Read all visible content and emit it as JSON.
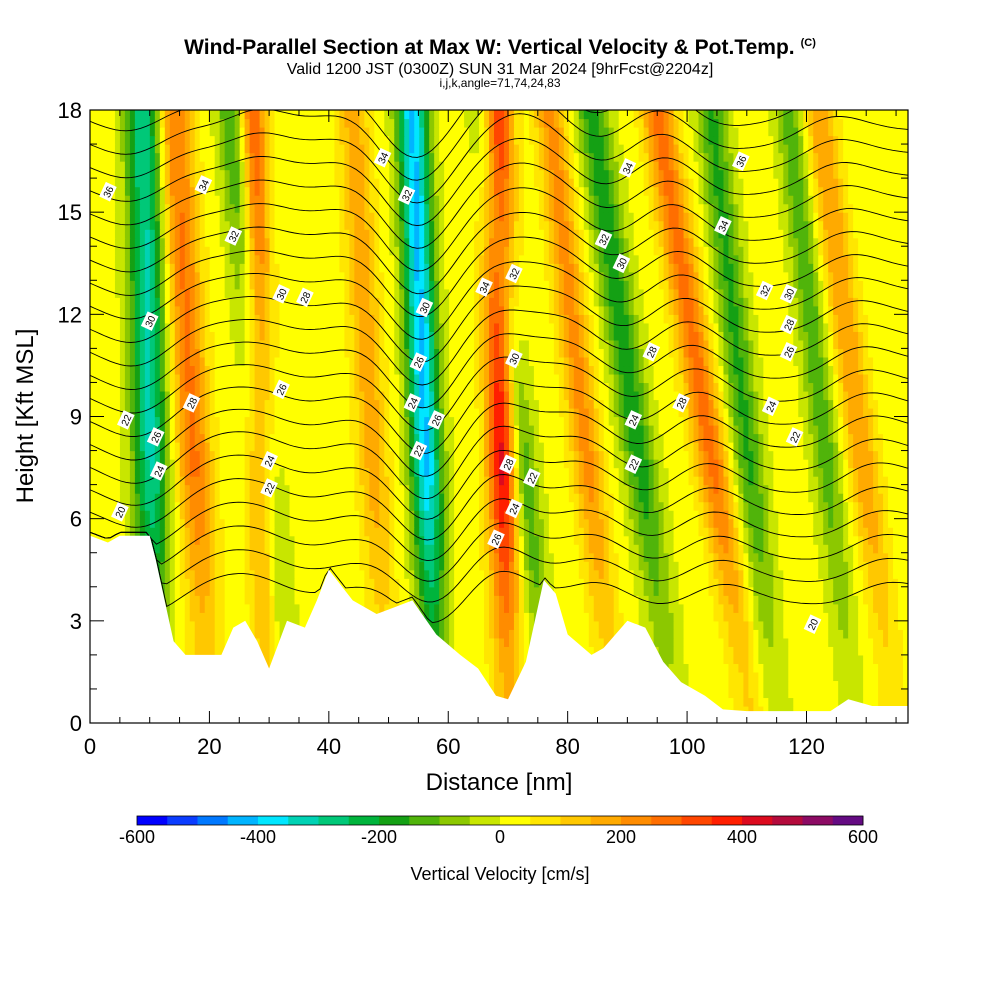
{
  "title": {
    "main": "Wind-Parallel Section at Max W: Vertical Velocity & Pot.Temp.",
    "copyright": "(C)",
    "line2": "Valid 1200 JST (0300Z) SUN 31 Mar 2024 [9hrFcst@2204z]",
    "line3": "i,j,k,angle=71,74,24,83"
  },
  "chart_data": {
    "type": "heatmap",
    "xlabel": "Distance [nm]",
    "ylabel": "Height [Kft MSL]",
    "xlim": [
      0,
      137
    ],
    "ylim": [
      0,
      18
    ],
    "x_ticks": [
      "0",
      "20",
      "40",
      "60",
      "80",
      "100",
      "120"
    ],
    "y_ticks": [
      "0",
      "3",
      "6",
      "9",
      "12",
      "15",
      "18"
    ],
    "x_tick_values": [
      0,
      20,
      40,
      60,
      80,
      100,
      120
    ],
    "y_tick_values": [
      0,
      3,
      6,
      9,
      12,
      15,
      18
    ],
    "grid": false,
    "colorbar": {
      "title": "Vertical Velocity [cm/s]",
      "range": [
        -600,
        600
      ],
      "tick_labels": [
        "-600",
        "-400",
        "-200",
        "0",
        "200",
        "400",
        "600"
      ],
      "tick_values": [
        -600,
        -400,
        -200,
        0,
        200,
        400,
        600
      ],
      "colors": [
        "#0000ff",
        "#0a3cff",
        "#0078ff",
        "#00b4ff",
        "#00e6ff",
        "#00d2b4",
        "#00c878",
        "#00b43c",
        "#14a014",
        "#50b40a",
        "#8cc800",
        "#c8e600",
        "#ffff00",
        "#ffe600",
        "#ffc800",
        "#ffaa00",
        "#ff8c00",
        "#ff6e00",
        "#ff4600",
        "#ff1e00",
        "#dc0a1e",
        "#b40a3c",
        "#8c0a64",
        "#640a82"
      ]
    },
    "terrain_profile": {
      "x": [
        0,
        3,
        5,
        10,
        11,
        13,
        14,
        16,
        18,
        22,
        24,
        26,
        28,
        30,
        33,
        36,
        38,
        40,
        44,
        48,
        51,
        54,
        58,
        62,
        65,
        68,
        70,
        73,
        76,
        78,
        80,
        84,
        86,
        90,
        93,
        96,
        99,
        103,
        106,
        110,
        113,
        118,
        124,
        127,
        131,
        137
      ],
      "h": [
        5.5,
        5.3,
        5.5,
        5.5,
        4.8,
        3.2,
        2.4,
        2.0,
        2.0,
        2.0,
        2.8,
        3.0,
        2.4,
        1.6,
        3.0,
        2.8,
        3.6,
        4.5,
        3.6,
        3.2,
        3.4,
        3.6,
        2.6,
        2.0,
        1.6,
        0.8,
        0.7,
        1.8,
        4.2,
        3.8,
        2.6,
        2.0,
        2.2,
        3.0,
        2.8,
        1.8,
        1.2,
        0.8,
        0.4,
        0.35,
        0.35,
        0.35,
        0.35,
        0.7,
        0.5,
        0.5
      ]
    },
    "w_field": {
      "description_units": "cm/s",
      "features": [
        {
          "x0": 11,
          "top_x": 9,
          "w": -330,
          "width": 3.0
        },
        {
          "x0": 33,
          "top_x": 24,
          "w": -220,
          "width": 2.6
        },
        {
          "x0": 58,
          "top_x": 54,
          "w": -430,
          "width": 2.6
        },
        {
          "x0": 77,
          "top_x": 66,
          "w": -200,
          "width": 2.4
        },
        {
          "x0": 98,
          "top_x": 84,
          "w": -200,
          "width": 2.8
        },
        {
          "x0": 115,
          "top_x": 104,
          "w": -180,
          "width": 2.6
        },
        {
          "x0": 128,
          "top_x": 117,
          "w": -150,
          "width": 2.4
        },
        {
          "x0": 20,
          "top_x": 14,
          "w": 240,
          "width": 3.0
        },
        {
          "x0": 30,
          "top_x": 27,
          "w": 320,
          "width": 2.4
        },
        {
          "x0": 50,
          "top_x": 44,
          "w": 160,
          "width": 2.6
        },
        {
          "x0": 70,
          "top_x": 68,
          "w": 420,
          "width": 2.6
        },
        {
          "x0": 88,
          "top_x": 77,
          "w": 200,
          "width": 2.6
        },
        {
          "x0": 111,
          "top_x": 95,
          "w": 250,
          "width": 2.8
        },
        {
          "x0": 135,
          "top_x": 122,
          "w": 180,
          "width": 2.6
        }
      ]
    },
    "theta_contours": {
      "units": "K",
      "levels": [
        20,
        22,
        24,
        26,
        28,
        30,
        32,
        34,
        36,
        38
      ],
      "labels": [
        {
          "text": "20",
          "x": 5,
          "h": 6.2
        },
        {
          "text": "22",
          "x": 6,
          "h": 8.9
        },
        {
          "text": "24",
          "x": 11.5,
          "h": 7.4
        },
        {
          "text": "26",
          "x": 11,
          "h": 8.4
        },
        {
          "text": "28",
          "x": 17,
          "h": 9.4
        },
        {
          "text": "30",
          "x": 10,
          "h": 11.8
        },
        {
          "text": "32",
          "x": 24,
          "h": 14.3
        },
        {
          "text": "34",
          "x": 19,
          "h": 15.8
        },
        {
          "text": "36",
          "x": 3,
          "h": 15.6
        },
        {
          "text": "22",
          "x": 30,
          "h": 6.9
        },
        {
          "text": "24",
          "x": 30,
          "h": 7.7
        },
        {
          "text": "26",
          "x": 32,
          "h": 9.8
        },
        {
          "text": "28",
          "x": 36,
          "h": 12.5
        },
        {
          "text": "30",
          "x": 32,
          "h": 12.6
        },
        {
          "text": "32",
          "x": 53,
          "h": 15.5
        },
        {
          "text": "34",
          "x": 49,
          "h": 16.6
        },
        {
          "text": "22",
          "x": 55,
          "h": 8.0
        },
        {
          "text": "24",
          "x": 54,
          "h": 9.4
        },
        {
          "text": "26",
          "x": 55,
          "h": 10.6
        },
        {
          "text": "26",
          "x": 58,
          "h": 8.9
        },
        {
          "text": "30",
          "x": 56,
          "h": 12.2
        },
        {
          "text": "26",
          "x": 68,
          "h": 5.4
        },
        {
          "text": "24",
          "x": 71,
          "h": 6.3
        },
        {
          "text": "22",
          "x": 74,
          "h": 7.2
        },
        {
          "text": "28",
          "x": 70,
          "h": 7.6
        },
        {
          "text": "30",
          "x": 71,
          "h": 10.7
        },
        {
          "text": "32",
          "x": 71,
          "h": 13.2
        },
        {
          "text": "34",
          "x": 66,
          "h": 12.8
        },
        {
          "text": "22",
          "x": 91,
          "h": 7.6
        },
        {
          "text": "24",
          "x": 91,
          "h": 8.9
        },
        {
          "text": "28",
          "x": 94,
          "h": 10.9
        },
        {
          "text": "30",
          "x": 89,
          "h": 13.5
        },
        {
          "text": "32",
          "x": 86,
          "h": 14.2
        },
        {
          "text": "34",
          "x": 90,
          "h": 16.3
        },
        {
          "text": "28",
          "x": 99,
          "h": 9.4
        },
        {
          "text": "34",
          "x": 106,
          "h": 14.6
        },
        {
          "text": "36",
          "x": 109,
          "h": 16.5
        },
        {
          "text": "22",
          "x": 118,
          "h": 8.4
        },
        {
          "text": "24",
          "x": 114,
          "h": 9.3
        },
        {
          "text": "26",
          "x": 117,
          "h": 10.9
        },
        {
          "text": "28",
          "x": 117,
          "h": 11.7
        },
        {
          "text": "30",
          "x": 117,
          "h": 12.6
        },
        {
          "text": "32",
          "x": 113,
          "h": 12.7
        },
        {
          "text": "20",
          "x": 121,
          "h": 2.9
        }
      ]
    }
  }
}
